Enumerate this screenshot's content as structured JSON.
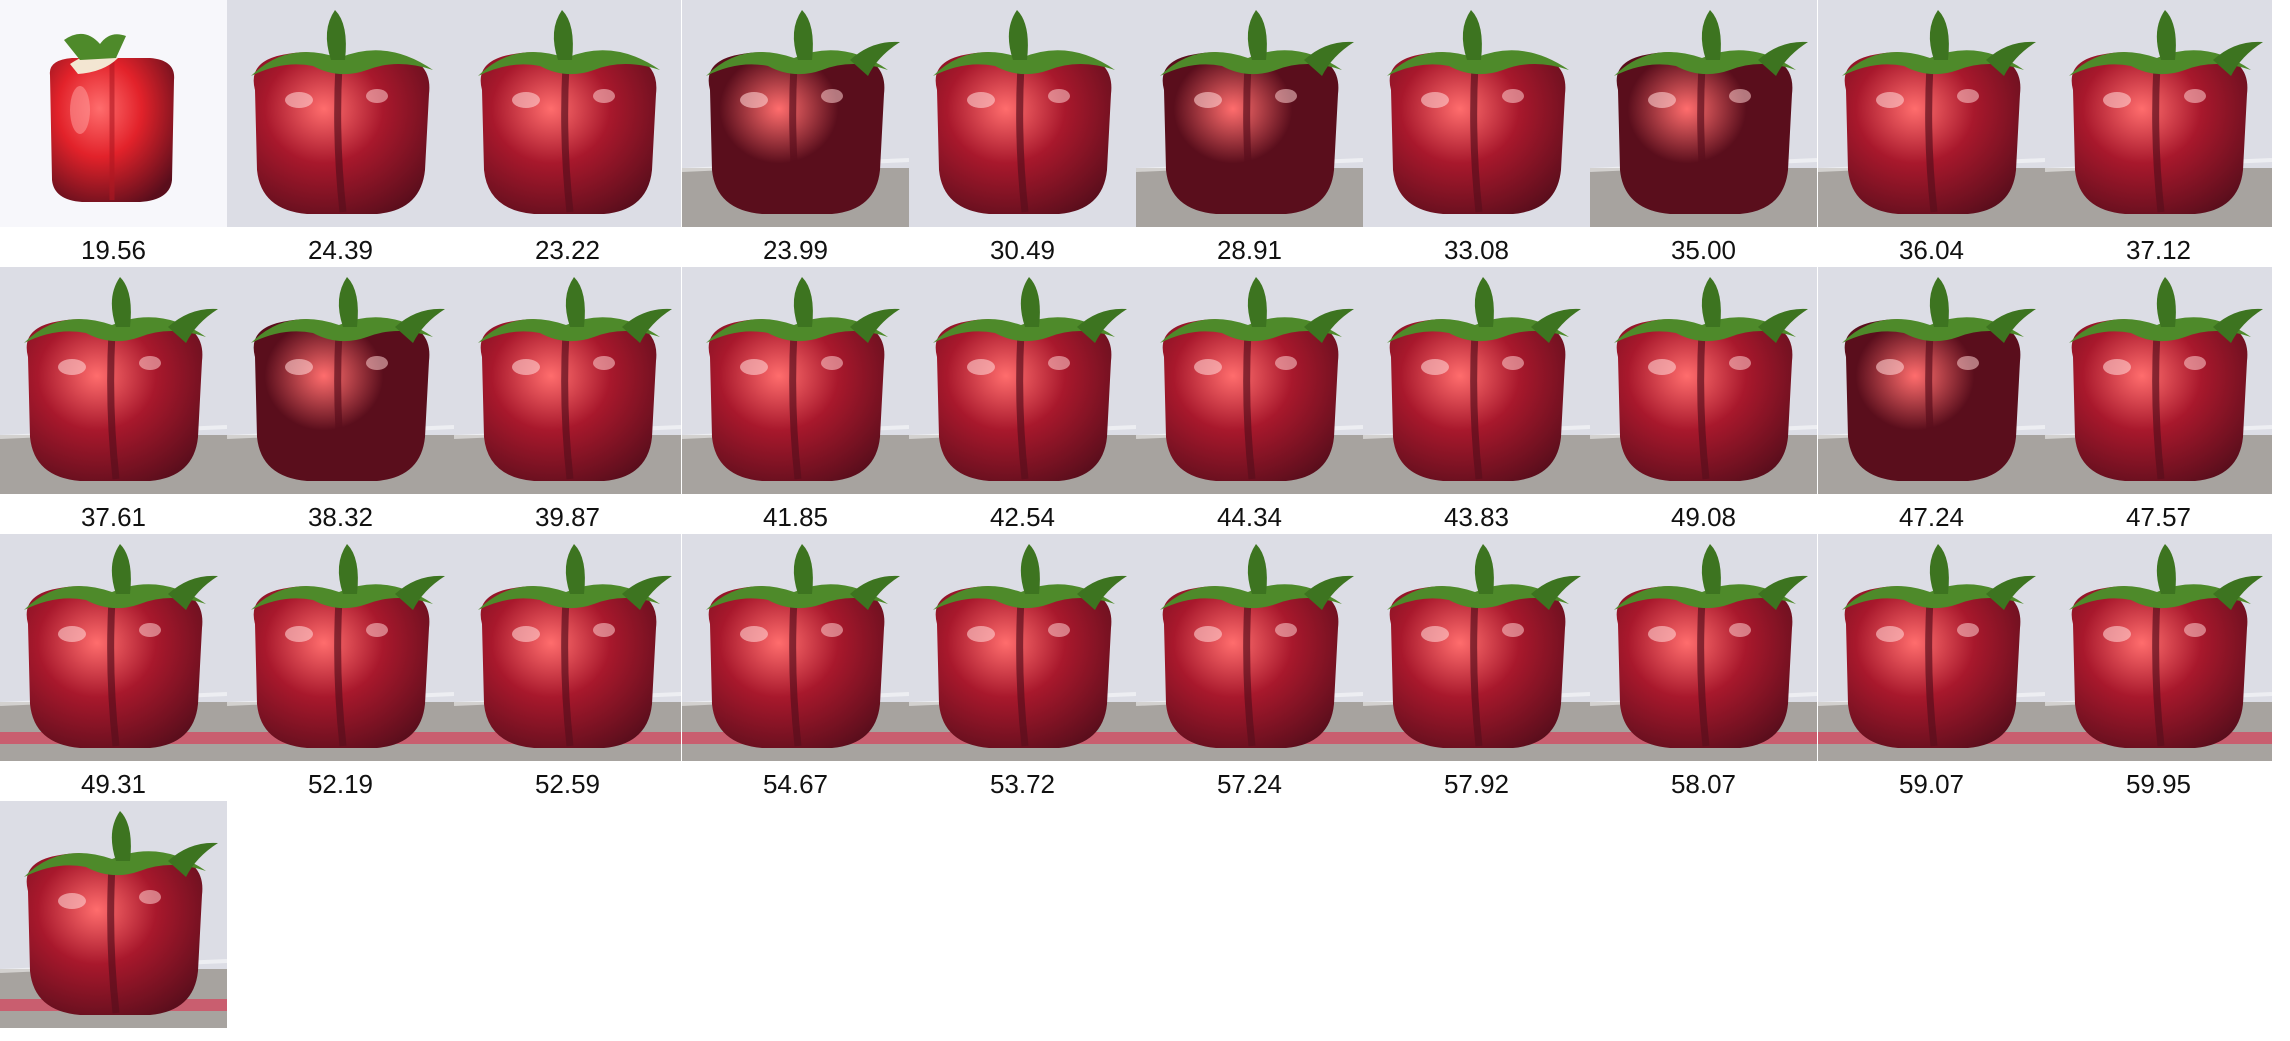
{
  "thumbnails": [
    {
      "label": "19.56",
      "style": "studio"
    },
    {
      "label": "24.39",
      "style": "early"
    },
    {
      "label": "23.22",
      "style": "early"
    },
    {
      "label": "23.99",
      "style": "dark"
    },
    {
      "label": "30.49",
      "style": "early"
    },
    {
      "label": "28.91",
      "style": "dark"
    },
    {
      "label": "33.08",
      "style": "early"
    },
    {
      "label": "35.00",
      "style": "dark"
    },
    {
      "label": "36.04",
      "style": "mid"
    },
    {
      "label": "37.12",
      "style": "mid"
    },
    {
      "label": "37.61",
      "style": "mid"
    },
    {
      "label": "38.32",
      "style": "dark"
    },
    {
      "label": "39.87",
      "style": "mid"
    },
    {
      "label": "41.85",
      "style": "mid"
    },
    {
      "label": "42.54",
      "style": "mid"
    },
    {
      "label": "44.34",
      "style": "mid"
    },
    {
      "label": "43.83",
      "style": "mid"
    },
    {
      "label": "49.08",
      "style": "mid"
    },
    {
      "label": "47.24",
      "style": "dark"
    },
    {
      "label": "47.57",
      "style": "mid"
    },
    {
      "label": "49.31",
      "style": "late"
    },
    {
      "label": "52.19",
      "style": "late"
    },
    {
      "label": "52.59",
      "style": "late"
    },
    {
      "label": "54.67",
      "style": "late"
    },
    {
      "label": "53.72",
      "style": "late"
    },
    {
      "label": "57.24",
      "style": "late"
    },
    {
      "label": "57.92",
      "style": "late"
    },
    {
      "label": "58.07",
      "style": "late"
    },
    {
      "label": "59.07",
      "style": "late"
    },
    {
      "label": "59.95",
      "style": "late"
    },
    {
      "label": "",
      "style": "late"
    }
  ],
  "colors": {
    "background": "#ffffff",
    "studio_backdrop": "#f7f7fb",
    "scene_backdrop": "#dcdde5",
    "table": "#a7a39f",
    "pepper_bright": "#e2222a",
    "pepper_mid": "#a8182c",
    "pepper_dark": "#5a0e1c",
    "stem": "#4e8a2a",
    "label_text": "#111111"
  }
}
